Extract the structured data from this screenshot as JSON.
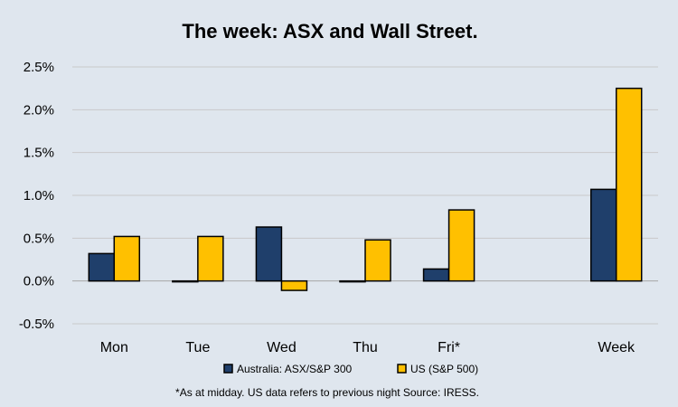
{
  "chart_data": {
    "type": "bar",
    "title": "The week:  ASX and Wall Street.",
    "categories": [
      "Mon",
      "Tue",
      "Wed",
      "Thu",
      "Fri*",
      "",
      "Week"
    ],
    "series": [
      {
        "name": "Australia: ASX/S&P 300",
        "color": "#1f3f6b",
        "values": [
          0.32,
          -0.01,
          0.63,
          -0.01,
          0.14,
          null,
          1.07
        ]
      },
      {
        "name": "US (S&P 500)",
        "color": "#ffc000",
        "values": [
          0.52,
          0.52,
          -0.11,
          0.48,
          0.83,
          null,
          2.25
        ]
      }
    ],
    "ylim": [
      -0.5,
      2.5
    ],
    "yticks": [
      -0.5,
      0,
      0.5,
      1.0,
      1.5,
      2.0,
      2.5
    ],
    "ytick_labels": [
      "-0.5%",
      "0.0%",
      "0.5%",
      "1.0%",
      "1.5%",
      "2.0%",
      "2.5%"
    ],
    "legend_position": "bottom",
    "footnote": "*As at midday. US data refers to previous night  Source:  IRESS."
  }
}
